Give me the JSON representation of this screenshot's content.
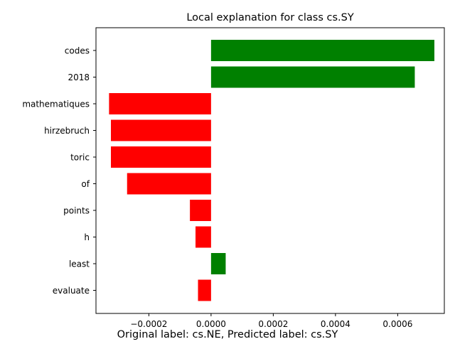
{
  "chart_data": {
    "type": "bar",
    "orientation": "horizontal",
    "title": "Local explanation for class cs.SY",
    "xlabel": "Original label: cs.NE, Predicted label: cs.SY",
    "ylabel": "",
    "categories": [
      "codes",
      "2018",
      "mathematiques",
      "hirzebruch",
      "toric",
      "of",
      "points",
      "h",
      "least",
      "evaluate"
    ],
    "values": [
      0.000718,
      0.000655,
      -0.000328,
      -0.000322,
      -0.000322,
      -0.00027,
      -6.8e-05,
      -5e-05,
      4.7e-05,
      -4.2e-05
    ],
    "xlim": [
      -0.00037,
      0.00075
    ],
    "xticks": [
      -0.0002,
      0.0,
      0.0002,
      0.0004,
      0.0006
    ],
    "xtick_labels": [
      "−0.0002",
      "0.0000",
      "0.0002",
      "0.0004",
      "0.0006"
    ],
    "positive_color": "#008000",
    "negative_color": "#ff0000",
    "grid": false,
    "legend": "none"
  }
}
